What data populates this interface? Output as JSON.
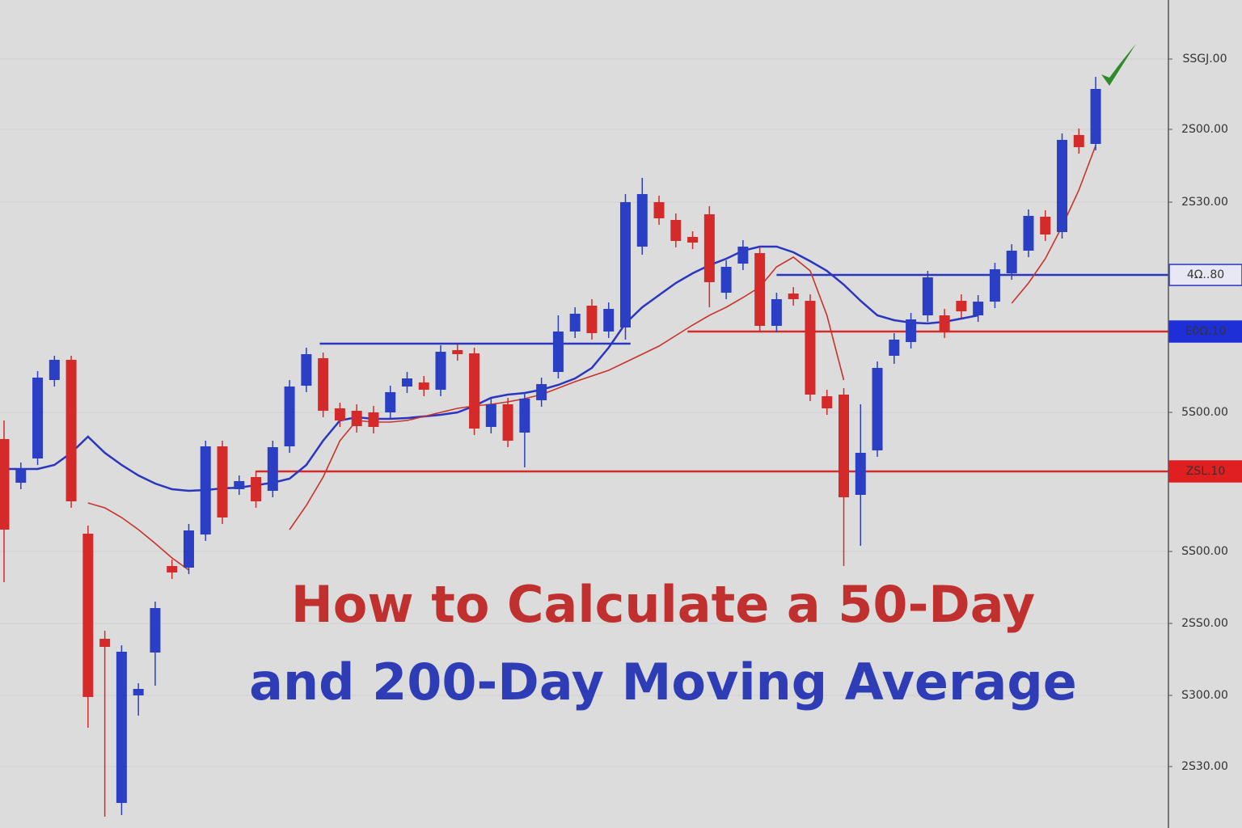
{
  "chart_data": {
    "type": "candlestick",
    "title_lines": [
      {
        "text": "How to Calculate a 50-Day",
        "color": "#c0302e"
      },
      {
        "text": "and 200-Day Moving Average",
        "color": "#2e3db5"
      }
    ],
    "categories": [
      null,
      null,
      null,
      null,
      null,
      null,
      null,
      null,
      null,
      null,
      null,
      null,
      null,
      null,
      null,
      null,
      null,
      null,
      null,
      null,
      null,
      null,
      null,
      null,
      null,
      null,
      null,
      null,
      null,
      null,
      null,
      null,
      null,
      null,
      null,
      null,
      null,
      null,
      null,
      null,
      null,
      null,
      null,
      null,
      null,
      null,
      null,
      null,
      null,
      null,
      null,
      null,
      null,
      null,
      null,
      null,
      null,
      null,
      null,
      null,
      null,
      null,
      null,
      null,
      null,
      null
    ],
    "open": [
      481,
      427,
      457,
      554,
      579,
      364,
      234,
      31,
      164,
      217,
      324,
      322,
      363,
      472,
      419,
      434,
      417,
      472,
      547,
      581,
      519,
      516,
      514,
      514,
      546,
      551,
      542,
      591,
      587,
      496,
      524,
      489,
      529,
      564,
      614,
      646,
      614,
      619,
      719,
      774,
      752,
      731,
      759,
      662,
      698,
      711,
      621,
      661,
      652,
      534,
      536,
      412,
      467,
      584,
      601,
      634,
      634,
      652,
      634,
      651,
      686,
      714,
      756,
      737,
      857,
      846
    ],
    "high": [
      504,
      452,
      565,
      584,
      584,
      374,
      244,
      226,
      179,
      280,
      332,
      376,
      479,
      479,
      436,
      442,
      479,
      554,
      594,
      588,
      526,
      524,
      522,
      547,
      564,
      559,
      597,
      598,
      594,
      532,
      532,
      539,
      557,
      634,
      644,
      654,
      650,
      784,
      804,
      782,
      760,
      738,
      769,
      702,
      727,
      719,
      662,
      669,
      660,
      542,
      544,
      524,
      577,
      612,
      637,
      689,
      642,
      660,
      659,
      699,
      722,
      765,
      764,
      859,
      865,
      929
    ],
    "low": [
      304,
      419,
      449,
      546,
      396,
      124,
      14,
      16,
      139,
      176,
      308,
      314,
      355,
      376,
      412,
      396,
      409,
      464,
      539,
      508,
      496,
      489,
      488,
      506,
      538,
      534,
      534,
      578,
      486,
      488,
      471,
      446,
      521,
      556,
      606,
      604,
      606,
      604,
      709,
      746,
      718,
      716,
      644,
      654,
      690,
      613,
      613,
      646,
      528,
      511,
      324,
      349,
      459,
      574,
      593,
      626,
      606,
      631,
      626,
      643,
      678,
      706,
      726,
      729,
      834,
      838
    ],
    "close": [
      369,
      444,
      557,
      579,
      404,
      162,
      224,
      218,
      172,
      272,
      316,
      368,
      472,
      384,
      429,
      404,
      471,
      546,
      586,
      516,
      504,
      497,
      496,
      539,
      556,
      542,
      589,
      586,
      494,
      524,
      479,
      531,
      549,
      614,
      636,
      612,
      642,
      774,
      784,
      754,
      726,
      724,
      675,
      694,
      719,
      621,
      654,
      654,
      536,
      519,
      409,
      464,
      569,
      604,
      629,
      681,
      614,
      639,
      651,
      691,
      714,
      757,
      734,
      851,
      842,
      914
    ],
    "up_color": "#2b3fc4",
    "down_color": "#d42a2a",
    "moving_averages": [
      {
        "color": "#2a35c0",
        "values": [
          444,
          444,
          444,
          449,
          464,
          484,
          464,
          449,
          436,
          426,
          419,
          417,
          418,
          420,
          421,
          424,
          427,
          432,
          449,
          479,
          504,
          508,
          506,
          506,
          507,
          509,
          511,
          514,
          522,
          532,
          536,
          538,
          542,
          548,
          556,
          569,
          594,
          624,
          644,
          659,
          674,
          686,
          696,
          704,
          714,
          719,
          719,
          712,
          701,
          689,
          672,
          652,
          634,
          628,
          625,
          624,
          626,
          630,
          634,
          null,
          null,
          null,
          null,
          null,
          null,
          null
        ]
      },
      {
        "color": "#c8332a",
        "values": [
          null,
          null,
          null,
          null,
          null,
          402,
          396,
          384,
          369,
          352,
          334,
          319,
          null,
          null,
          null,
          null,
          null,
          369,
          399,
          434,
          479,
          504,
          502,
          502,
          504,
          509,
          514,
          519,
          522,
          524,
          527,
          531,
          536,
          544,
          552,
          559,
          566,
          576,
          586,
          596,
          609,
          622,
          634,
          644,
          656,
          669,
          694,
          706,
          689,
          634,
          554,
          null,
          null,
          null,
          null,
          null,
          null,
          null,
          null,
          null,
          649,
          674,
          704,
          744,
          789,
          844
        ]
      }
    ],
    "levels": [
      {
        "value": 684,
        "from": 46,
        "color": "#2a35c0",
        "label": "4Ω..80",
        "label_style": "outline"
      },
      {
        "value": 614,
        "from": 40.7,
        "color": "#d42a2a",
        "label": "E0Ω.10",
        "label_style": "blue-fill"
      },
      {
        "value": 441,
        "from": 15,
        "color": "#d42a2a",
        "label": "ZSL.10",
        "label_style": "red-fill"
      },
      {
        "value": 599,
        "from": 18.8,
        "to": 37.3,
        "color": "#2a35c0"
      }
    ],
    "ylim": [
      0,
      1024
    ],
    "yticks": [
      {
        "value": 951,
        "label": "SSGJ.00"
      },
      {
        "value": 864,
        "label": "2S00.00"
      },
      {
        "value": 774,
        "label": "2S30.00"
      },
      {
        "value": 514,
        "label": "5S00.00"
      },
      {
        "value": 342,
        "label": "SS00.00"
      },
      {
        "value": 253,
        "label": "2SS0.00"
      },
      {
        "value": 164,
        "label": "S300.00"
      },
      {
        "value": 76,
        "label": "2S30.00"
      }
    ],
    "grid": true
  }
}
